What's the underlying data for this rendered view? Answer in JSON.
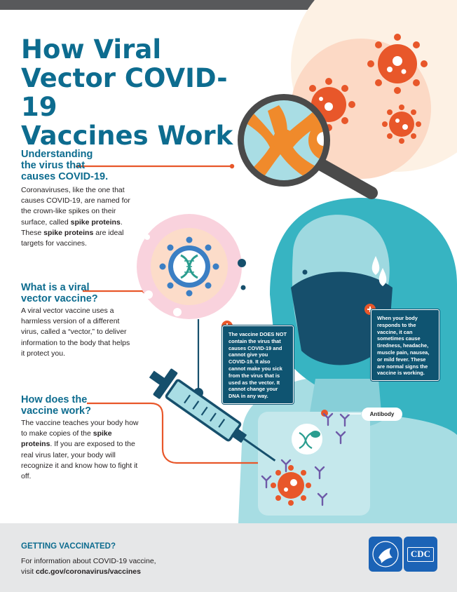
{
  "title": {
    "line1": "How Viral",
    "line2": "Vector COVID-19",
    "line3": "Vaccines Work"
  },
  "section1": {
    "heading_line1": "Understanding",
    "heading_line2": "the virus that",
    "heading_line3": "causes COVID-19.",
    "text_a": "Coronaviruses, like the one that causes COVID-19, are named for the crown-like spikes on their surface, called ",
    "bold_a": "spike proteins",
    "text_b": ". These ",
    "bold_b": "spike proteins",
    "text_c": " are ideal targets for vaccines."
  },
  "section2": {
    "heading_line1": "What is a viral",
    "heading_line2": "vector vaccine?",
    "text": "A viral vector vaccine uses a harmless version of a different virus, called a “vector,” to deliver information to the body that helps it protect you."
  },
  "section3": {
    "heading_line1": "How does the",
    "heading_line2": "vaccine work?",
    "text_a": "The vaccine teaches your body how to make copies of the ",
    "bold_a": "spike proteins",
    "text_b": ". If you are exposed to the real virus later, your body will recognize it and know how to fight it off."
  },
  "callout_vaccine": {
    "text_a": "The vaccine ",
    "bold_a": "DOES NOT",
    "text_b": " contain the virus that causes COVID-19 and cannot give you COVID-19. It also cannot make you sick from the virus that is used as the vector. It cannot change your DNA in any way."
  },
  "callout_side_effects": {
    "text": "When your body responds to the vaccine, it can sometimes cause tiredness, headache, muscle pain, nausea, or mild fever. These are normal signs the vaccine is working."
  },
  "antibody_label": "Antibody",
  "footer": {
    "heading": "GETTING VACCINATED?",
    "line1": "For information about COVID-19 vaccine,",
    "line2_prefix": "visit ",
    "link": "cdc.gov/coronavirus/vaccines"
  },
  "logos": {
    "hhs": "HHS",
    "cdc": "CDC"
  },
  "colors": {
    "title_blue": "#0d6c8f",
    "callout_navy": "#0f5471",
    "virus_orange": "#e8572a",
    "teal": "#41b6c4",
    "peach": "#fcdcc9",
    "pink": "#f9d2dd",
    "footer_gray": "#e6e7e8"
  },
  "icons": [
    "magnifying-glass-icon",
    "coronavirus-icon",
    "dna-icon",
    "syringe-icon",
    "antibody-icon",
    "plus-icon",
    "hhs-eagle-icon"
  ]
}
